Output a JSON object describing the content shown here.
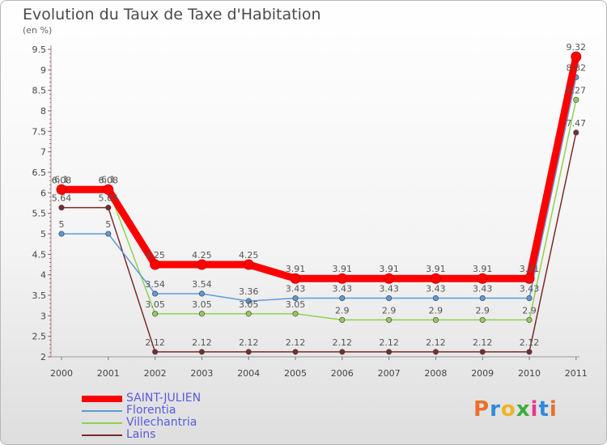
{
  "chart_data": {
    "type": "line",
    "title": "Evolution du Taux de Taxe d'Habitation",
    "subtitle": "(en %)",
    "categories": [
      "2000",
      "2001",
      "2002",
      "2003",
      "2004",
      "2005",
      "2006",
      "2007",
      "2008",
      "2009",
      "2010",
      "2011"
    ],
    "ylim": [
      2,
      9.5
    ],
    "yticks": [
      "2",
      "2.5",
      "3",
      "3.5",
      "4",
      "4.5",
      "5",
      "5.5",
      "6",
      "6.5",
      "7",
      "7.5",
      "8",
      "8.5",
      "9",
      "9.5"
    ],
    "grid": false,
    "legend_position": "bottom-left",
    "series": [
      {
        "name": "SAINT-JULIEN",
        "color": "#ff0000",
        "values": [
          6.08,
          6.08,
          4.25,
          4.25,
          4.25,
          3.91,
          3.91,
          3.91,
          3.91,
          3.91,
          3.91,
          9.32
        ],
        "labels": [
          "6.08",
          "6.08",
          "4.25",
          "4.25",
          "4.25",
          "3.91",
          "3.91",
          "3.91",
          "3.91",
          "3.91",
          "3.91",
          "9.32"
        ]
      },
      {
        "name": "Florentia",
        "color": "#5b9bd5",
        "values": [
          5,
          5,
          3.54,
          3.54,
          3.36,
          3.43,
          3.43,
          3.43,
          3.43,
          3.43,
          3.43,
          8.82
        ],
        "labels": [
          "5",
          "5",
          "3.54",
          "3.54",
          "3.36",
          "3.43",
          "3.43",
          "3.43",
          "3.43",
          "3.43",
          "3.43",
          "8.82"
        ]
      },
      {
        "name": "Villechantria",
        "color": "#92d050",
        "values": [
          6.1,
          6.1,
          3.05,
          3.05,
          3.05,
          3.05,
          2.9,
          2.9,
          2.9,
          2.9,
          2.9,
          8.27
        ],
        "labels": [
          "6.1",
          "6.1",
          "3.05",
          "3.05",
          "3.05",
          "3.05",
          "2.9",
          "2.9",
          "2.9",
          "2.9",
          "2.9",
          "8.27"
        ]
      },
      {
        "name": "Lains",
        "color": "#7b2a2a",
        "values": [
          5.64,
          5.64,
          2.12,
          2.12,
          2.12,
          2.12,
          2.12,
          2.12,
          2.12,
          2.12,
          2.12,
          7.47
        ],
        "labels": [
          "5.64",
          "5.64",
          "2.12",
          "2.12",
          "2.12",
          "2.12",
          "2.12",
          "2.12",
          "2.12",
          "2.12",
          "2.12",
          "7.47"
        ]
      }
    ]
  },
  "logo": {
    "text": "Proxiti",
    "colors": [
      "#e8712c",
      "#2e8bd8",
      "#f0b323",
      "#3cae3c",
      "#e33a8f",
      "#2e8bd8",
      "#e8712c"
    ]
  }
}
